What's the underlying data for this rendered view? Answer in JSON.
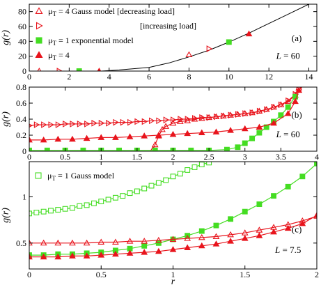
{
  "colors": {
    "red": "#e8141c",
    "green": "#44dd22",
    "black": "#000000"
  },
  "chart_data": [
    {
      "type": "scatter",
      "panel_label": "(a)",
      "box_note": "L = 60",
      "ylabel": "g(r)",
      "xlim": [
        0,
        14.4
      ],
      "ylim": [
        0,
        90
      ],
      "xticks": [
        0,
        2,
        4,
        6,
        8,
        10,
        12,
        14
      ],
      "yticks": [
        0,
        20,
        40,
        60,
        80
      ],
      "legend": [
        {
          "marker": "tri-up-open",
          "color": "red",
          "text": "μ_T = 4  Gauss model [decreasing load]"
        },
        {
          "marker": "tri-right-open",
          "color": "red",
          "text": "[increasing load]"
        },
        {
          "marker": "square-filled",
          "color": "green",
          "text": "μ_T = 1  exponential model"
        },
        {
          "marker": "tri-up-filled",
          "color": "red",
          "text": "μ_T = 4"
        }
      ],
      "series": [
        {
          "marker": "tri-up-open",
          "color": "red",
          "points": [
            [
              0.5,
              0
            ],
            [
              8,
              22
            ]
          ]
        },
        {
          "marker": "tri-right-open",
          "color": "red",
          "points": [
            [
              1.5,
              0
            ],
            [
              9,
              30
            ]
          ]
        },
        {
          "marker": "square-filled",
          "color": "green",
          "points": [
            [
              2.5,
              0
            ],
            [
              10,
              39
            ]
          ]
        },
        {
          "marker": "tri-up-filled",
          "color": "red",
          "points": [
            [
              3.5,
              0
            ],
            [
              11,
              50
            ]
          ]
        }
      ],
      "curve": {
        "color": "black",
        "points": [
          [
            3.6,
            0
          ],
          [
            4.5,
            1.5
          ],
          [
            6,
            5
          ],
          [
            7,
            11
          ],
          [
            8,
            19
          ],
          [
            9,
            28
          ],
          [
            10,
            39
          ],
          [
            11,
            51
          ],
          [
            12,
            64
          ],
          [
            13,
            77
          ],
          [
            14,
            90
          ]
        ]
      }
    },
    {
      "type": "scatter",
      "panel_label": "(b)",
      "box_note": "L = 60",
      "ylabel": "g(r)",
      "xlim": [
        0,
        4
      ],
      "ylim": [
        0,
        0.8
      ],
      "xticks": [
        0,
        0.5,
        1,
        1.5,
        2,
        2.5,
        3,
        3.5,
        4
      ],
      "xtick_labels": [
        "0",
        "0.5",
        "1",
        "1.5",
        "2",
        "2.5",
        "3",
        "3.5",
        "4"
      ],
      "yticks": [
        0,
        0.2,
        0.4,
        0.6,
        0.8
      ],
      "series": [
        {
          "name_ref": "decreasing",
          "marker": "tri-up-open",
          "color": "red",
          "line": true,
          "points": [
            [
              1.72,
              0.02
            ],
            [
              1.75,
              0.08
            ],
            [
              1.8,
              0.19
            ],
            [
              1.85,
              0.27
            ],
            [
              1.9,
              0.31
            ],
            [
              2.0,
              0.35
            ],
            [
              2.1,
              0.37
            ],
            [
              2.2,
              0.38
            ],
            [
              2.3,
              0.4
            ],
            [
              2.4,
              0.41
            ],
            [
              2.5,
              0.42
            ],
            [
              2.6,
              0.43
            ],
            [
              2.7,
              0.44
            ],
            [
              2.8,
              0.45
            ],
            [
              2.9,
              0.46
            ],
            [
              3.0,
              0.47
            ],
            [
              3.1,
              0.48
            ],
            [
              3.2,
              0.5
            ],
            [
              3.3,
              0.52
            ],
            [
              3.4,
              0.55
            ],
            [
              3.5,
              0.58
            ],
            [
              3.6,
              0.62
            ],
            [
              3.7,
              0.7
            ],
            [
              3.75,
              0.79
            ]
          ]
        },
        {
          "name_ref": "increasing",
          "marker": "tri-right-open",
          "color": "red",
          "line": true,
          "points": [
            [
              0.0,
              0.32
            ],
            [
              0.1,
              0.33
            ],
            [
              0.2,
              0.33
            ],
            [
              0.3,
              0.33
            ],
            [
              0.4,
              0.33
            ],
            [
              0.5,
              0.34
            ],
            [
              0.6,
              0.34
            ],
            [
              0.7,
              0.34
            ],
            [
              0.8,
              0.34
            ],
            [
              0.9,
              0.35
            ],
            [
              1.0,
              0.35
            ],
            [
              1.1,
              0.35
            ],
            [
              1.2,
              0.36
            ],
            [
              1.3,
              0.36
            ],
            [
              1.4,
              0.36
            ],
            [
              1.5,
              0.37
            ],
            [
              1.6,
              0.37
            ],
            [
              1.7,
              0.38
            ],
            [
              1.8,
              0.38
            ],
            [
              1.9,
              0.39
            ],
            [
              2.0,
              0.39
            ],
            [
              2.1,
              0.4
            ],
            [
              2.2,
              0.4
            ],
            [
              2.3,
              0.41
            ],
            [
              2.4,
              0.42
            ],
            [
              2.5,
              0.42
            ],
            [
              2.6,
              0.43
            ],
            [
              2.7,
              0.44
            ],
            [
              2.8,
              0.45
            ],
            [
              2.9,
              0.46
            ],
            [
              3.0,
              0.47
            ],
            [
              3.1,
              0.48
            ],
            [
              3.2,
              0.5
            ],
            [
              3.3,
              0.52
            ],
            [
              3.4,
              0.55
            ],
            [
              3.5,
              0.58
            ],
            [
              3.6,
              0.63
            ],
            [
              3.7,
              0.71
            ],
            [
              3.75,
              0.79
            ]
          ]
        },
        {
          "name_ref": "exponential",
          "marker": "square-filled",
          "color": "green",
          "line": true,
          "points": [
            [
              0.0,
              0.01
            ],
            [
              0.25,
              0.01
            ],
            [
              0.5,
              0.01
            ],
            [
              0.75,
              0.01
            ],
            [
              1.0,
              0.01
            ],
            [
              1.25,
              0.01
            ],
            [
              1.5,
              0.01
            ],
            [
              1.75,
              0.01
            ],
            [
              2.0,
              0.01
            ],
            [
              2.25,
              0.01
            ],
            [
              2.5,
              0.01
            ],
            [
              2.75,
              0.02
            ],
            [
              2.9,
              0.05
            ],
            [
              3.0,
              0.1
            ],
            [
              3.1,
              0.16
            ],
            [
              3.2,
              0.23
            ],
            [
              3.3,
              0.3
            ],
            [
              3.4,
              0.37
            ],
            [
              3.5,
              0.45
            ],
            [
              3.6,
              0.55
            ],
            [
              3.7,
              0.68
            ]
          ]
        },
        {
          "name_ref": "filled-gauss",
          "marker": "tri-up-filled",
          "color": "red",
          "line": true,
          "points": [
            [
              0.0,
              0.14
            ],
            [
              0.2,
              0.14
            ],
            [
              0.4,
              0.15
            ],
            [
              0.6,
              0.15
            ],
            [
              0.8,
              0.16
            ],
            [
              1.0,
              0.17
            ],
            [
              1.2,
              0.17
            ],
            [
              1.4,
              0.18
            ],
            [
              1.6,
              0.19
            ],
            [
              1.8,
              0.2
            ],
            [
              2.0,
              0.21
            ],
            [
              2.2,
              0.22
            ],
            [
              2.4,
              0.23
            ],
            [
              2.6,
              0.24
            ],
            [
              2.8,
              0.26
            ],
            [
              3.0,
              0.28
            ],
            [
              3.2,
              0.3
            ],
            [
              3.4,
              0.35
            ],
            [
              3.6,
              0.47
            ],
            [
              3.7,
              0.62
            ],
            [
              3.75,
              0.76
            ]
          ]
        }
      ]
    },
    {
      "type": "scatter",
      "panel_label": "(c)",
      "box_note": "L = 7.5",
      "ylabel": "g(r)",
      "xlabel": "r",
      "xlim": [
        0,
        2
      ],
      "ylim": [
        0.22,
        1.38
      ],
      "xticks": [
        0,
        0.5,
        1,
        1.5,
        2
      ],
      "xtick_labels": [
        "0",
        "0.5",
        "1",
        "1.5",
        "2"
      ],
      "yticks": [
        0.5,
        1
      ],
      "legend": [
        {
          "marker": "square-open",
          "color": "green",
          "text": "μ_T = 1 Gauss model"
        }
      ],
      "series": [
        {
          "name_ref": "gauss-open-square",
          "marker": "square-open",
          "color": "green",
          "line": true,
          "points": [
            [
              0.0,
              0.82
            ],
            [
              0.05,
              0.83
            ],
            [
              0.1,
              0.84
            ],
            [
              0.15,
              0.85
            ],
            [
              0.2,
              0.86
            ],
            [
              0.25,
              0.87
            ],
            [
              0.3,
              0.88
            ],
            [
              0.35,
              0.9
            ],
            [
              0.4,
              0.91
            ],
            [
              0.45,
              0.93
            ],
            [
              0.5,
              0.95
            ],
            [
              0.55,
              0.97
            ],
            [
              0.6,
              0.99
            ],
            [
              0.65,
              1.01
            ],
            [
              0.7,
              1.04
            ],
            [
              0.75,
              1.06
            ],
            [
              0.8,
              1.09
            ],
            [
              0.85,
              1.12
            ],
            [
              0.9,
              1.15
            ],
            [
              0.95,
              1.18
            ],
            [
              1.0,
              1.22
            ],
            [
              1.05,
              1.25
            ],
            [
              1.1,
              1.29
            ],
            [
              1.15,
              1.32
            ],
            [
              1.2,
              1.35
            ],
            [
              1.25,
              1.37
            ]
          ]
        },
        {
          "name_ref": "exp-filled-square",
          "marker": "square-filled",
          "color": "green",
          "line": true,
          "points": [
            [
              0.0,
              0.37
            ],
            [
              0.1,
              0.37
            ],
            [
              0.2,
              0.38
            ],
            [
              0.3,
              0.38
            ],
            [
              0.4,
              0.39
            ],
            [
              0.5,
              0.4
            ],
            [
              0.6,
              0.42
            ],
            [
              0.7,
              0.44
            ],
            [
              0.8,
              0.47
            ],
            [
              0.9,
              0.5
            ],
            [
              1.0,
              0.54
            ],
            [
              1.1,
              0.58
            ],
            [
              1.2,
              0.63
            ],
            [
              1.3,
              0.69
            ],
            [
              1.4,
              0.76
            ],
            [
              1.5,
              0.84
            ],
            [
              1.6,
              0.92
            ],
            [
              1.7,
              1.01
            ],
            [
              1.8,
              1.11
            ],
            [
              1.9,
              1.22
            ],
            [
              2.0,
              1.36
            ]
          ]
        },
        {
          "name_ref": "gauss-open-tri",
          "marker": "tri-up-open",
          "color": "red",
          "line": true,
          "points": [
            [
              0.0,
              0.5
            ],
            [
              0.1,
              0.5
            ],
            [
              0.2,
              0.5
            ],
            [
              0.3,
              0.5
            ],
            [
              0.4,
              0.5
            ],
            [
              0.5,
              0.51
            ],
            [
              0.6,
              0.51
            ],
            [
              0.7,
              0.52
            ],
            [
              0.8,
              0.52
            ],
            [
              0.9,
              0.53
            ],
            [
              1.0,
              0.54
            ],
            [
              1.1,
              0.55
            ],
            [
              1.2,
              0.56
            ],
            [
              1.3,
              0.57
            ],
            [
              1.4,
              0.59
            ],
            [
              1.5,
              0.61
            ],
            [
              1.6,
              0.64
            ],
            [
              1.7,
              0.67
            ],
            [
              1.8,
              0.7
            ],
            [
              1.9,
              0.74
            ],
            [
              2.0,
              0.79
            ]
          ]
        },
        {
          "name_ref": "gauss-filled-tri",
          "marker": "tri-up-filled",
          "color": "red",
          "line": true,
          "points": [
            [
              0.0,
              0.35
            ],
            [
              0.1,
              0.35
            ],
            [
              0.2,
              0.35
            ],
            [
              0.3,
              0.36
            ],
            [
              0.4,
              0.36
            ],
            [
              0.5,
              0.37
            ],
            [
              0.6,
              0.38
            ],
            [
              0.7,
              0.39
            ],
            [
              0.8,
              0.4
            ],
            [
              0.9,
              0.41
            ],
            [
              1.0,
              0.43
            ],
            [
              1.1,
              0.45
            ],
            [
              1.2,
              0.47
            ],
            [
              1.3,
              0.49
            ],
            [
              1.4,
              0.52
            ],
            [
              1.5,
              0.55
            ],
            [
              1.6,
              0.58
            ],
            [
              1.7,
              0.62
            ],
            [
              1.8,
              0.66
            ],
            [
              1.9,
              0.71
            ],
            [
              2.0,
              0.8
            ]
          ]
        }
      ]
    }
  ]
}
